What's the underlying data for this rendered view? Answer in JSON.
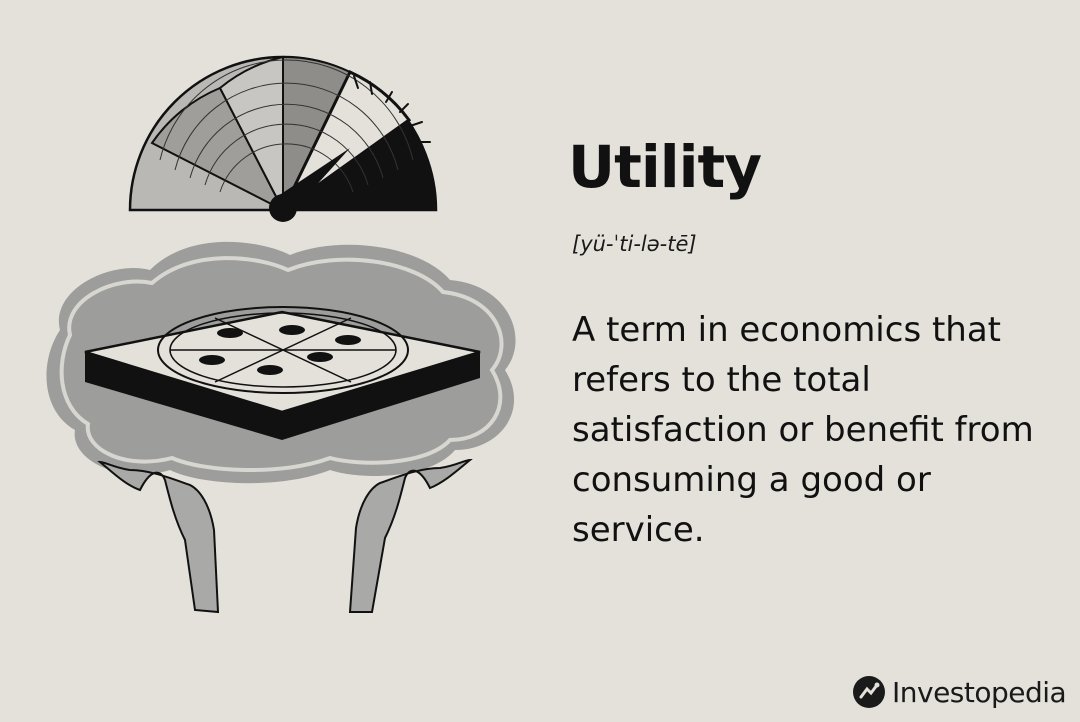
{
  "definition_card": {
    "title": "Utility",
    "pronunciation": "[yü-ˈti-lə-tē]",
    "definition": "A term in economics that refers to the total satisfaction or benefit from consuming a good or service."
  },
  "brand": {
    "name": "Investopedia",
    "logo_icon": "investopedia-logo-icon"
  },
  "illustration": {
    "elements": [
      "satisfaction-gauge",
      "pizza-in-box",
      "cloud-glow",
      "raised-hands"
    ],
    "colors": {
      "background": "#e4e1db",
      "ink": "#111111",
      "gray": "#a9a9a7",
      "cloud": "#9d9d9b"
    }
  }
}
